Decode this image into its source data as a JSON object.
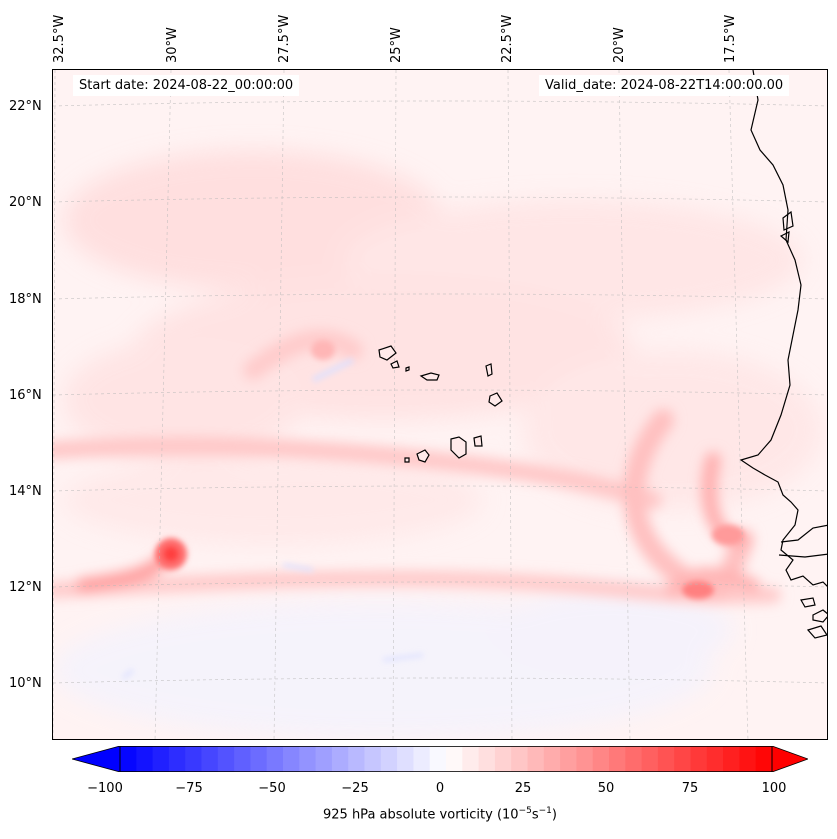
{
  "map": {
    "start_date_label": "Start date: 2024-08-22_00:00:00",
    "valid_date_label": "Valid_date: 2024-08-22T14:00:00.00",
    "lon_labels": [
      "32.5°W",
      "30°W",
      "27.5°W",
      "25°W",
      "22.5°W",
      "20°W",
      "17.5°W"
    ],
    "lat_labels": [
      "22°N",
      "20°N",
      "18°N",
      "16°N",
      "14°N",
      "12°N",
      "10°N"
    ],
    "field": "925 hPa absolute vorticity",
    "colors": {
      "positive": "#ff0000",
      "negative": "#0000ff",
      "coastline": "#000000"
    }
  },
  "colorbar": {
    "ticks": [
      "−100",
      "−75",
      "−50",
      "−25",
      "0",
      "25",
      "50",
      "75",
      "100"
    ],
    "label_prefix": "925 hPa absolute vorticity (10",
    "label_exp1": "−5",
    "label_mid": "s",
    "label_exp2": "−1",
    "label_suffix": ")",
    "min": -100,
    "max": 100
  }
}
